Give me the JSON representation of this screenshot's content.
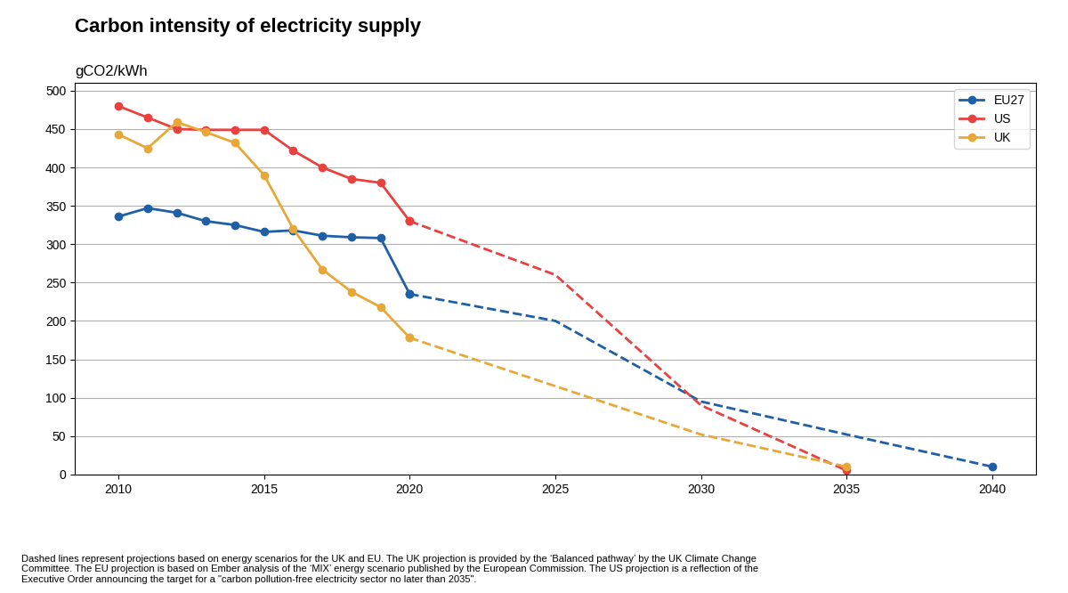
{
  "chart_data": {
    "type": "line",
    "title": "Carbon intensity of electricity supply",
    "subtitle": "gCO2/kWh",
    "footer": "Dashed lines represent projections based on energy scenarios for the UK and EU. The UK projection is provided by the ‘Balanced pathway’ by the UK Climate Change\nCommittee. The EU projection is based on Ember analysis of the ‘MIX’ energy scenario published by the European Commission. The US projection is a reflection of the\nExecutive Order announcing the target for a \"carbon pollution-free electricity sector no later than 2035\".",
    "series": [
      {
        "name": "EU27",
        "color": "#1f5fa6",
        "marker": "o",
        "line_style": "solid",
        "x": [
          2010,
          2011,
          2012,
          2013,
          2014,
          2015,
          2016,
          2017,
          2018,
          2019,
          2020
        ],
        "values": [
          336,
          347,
          341,
          330,
          325,
          316,
          318,
          311,
          309,
          308,
          235
        ]
      },
      {
        "name": "EU27",
        "color": "#1f5fa6",
        "marker": "o",
        "line_style": "dashed",
        "x": [
          2020,
          2025,
          2030,
          2035,
          2040
        ],
        "values": [
          235,
          200,
          95,
          52,
          10
        ]
      },
      {
        "name": "US",
        "color": "#e8413e",
        "marker": "o",
        "line_style": "solid",
        "x": [
          2010,
          2011,
          2012,
          2013,
          2014,
          2015,
          2016,
          2017,
          2018,
          2019,
          2020
        ],
        "values": [
          480,
          465,
          450,
          449,
          449,
          449,
          422,
          400,
          385,
          380,
          330
        ]
      },
      {
        "name": "US",
        "color": "#e8413e",
        "marker": "o",
        "line_style": "dashed",
        "x": [
          2020,
          2025,
          2030,
          2035
        ],
        "values": [
          330,
          260,
          90,
          5
        ]
      },
      {
        "name": "UK",
        "color": "#e8a838",
        "marker": "o",
        "line_style": "solid",
        "x": [
          2010,
          2011,
          2012,
          2013,
          2014,
          2015,
          2016,
          2017,
          2018,
          2019,
          2020
        ],
        "values": [
          443,
          425,
          459,
          446,
          432,
          390,
          320,
          267,
          238,
          218,
          178
        ]
      },
      {
        "name": "UK",
        "color": "#e8a838",
        "marker": "o",
        "line_style": "dashed",
        "x": [
          2020,
          2025,
          2030,
          2035
        ],
        "values": [
          178,
          115,
          52,
          10
        ]
      }
    ],
    "xlim": [
      2008.5,
      2041.5
    ],
    "xticks": [
      2010,
      2015,
      2020,
      2025,
      2030,
      2035,
      2040
    ],
    "ylim": [
      0,
      510
    ],
    "yticks": [
      0,
      50,
      100,
      150,
      200,
      250,
      300,
      350,
      400,
      450,
      500
    ],
    "grid": "y",
    "legend": "upper right"
  }
}
